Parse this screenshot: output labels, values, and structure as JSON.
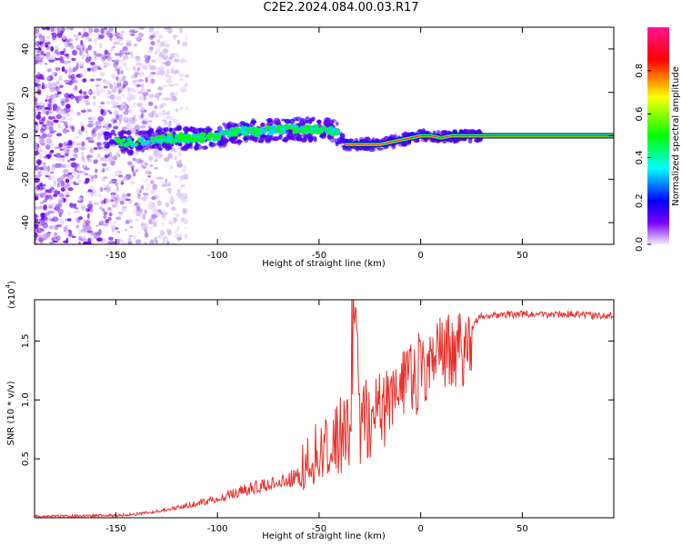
{
  "title": "C2E2.2024.084.00.03.R17",
  "chart_data": [
    {
      "type": "heatmap",
      "title": "C2E2.2024.084.00.03.R17",
      "xlabel": "Height of straight line (km)",
      "ylabel": "Frequency (Hz)",
      "xlim": [
        -190,
        95
      ],
      "ylim": [
        -50,
        50
      ],
      "x_ticks": [
        -150,
        -100,
        -50,
        0,
        50
      ],
      "y_ticks": [
        -40,
        -20,
        0,
        20,
        40
      ],
      "x_tick_labels": [
        "-150",
        "-100",
        "-50",
        "0",
        "50"
      ],
      "y_tick_labels": [
        "-40",
        "-20",
        "0",
        "20",
        "40"
      ],
      "colorbar": {
        "label": "Normalized spectral amplitude",
        "range": [
          0,
          1
        ],
        "ticks": [
          0.0,
          0.2,
          0.4,
          0.6,
          0.8
        ],
        "tick_labels": [
          "0.0",
          "0.2",
          "0.4",
          "0.6",
          "0.8"
        ],
        "colors": [
          "#f2e9fb",
          "#7a00ff",
          "#0000ff",
          "#00ffff",
          "#00ff00",
          "#ffff00",
          "#ff0000",
          "#ff1493"
        ]
      },
      "noise_region": {
        "x_start": -190,
        "x_end": -125,
        "note_level": 0.35
      },
      "ridge": [
        {
          "x": -150,
          "f": -3
        },
        {
          "x": -140,
          "f": -3
        },
        {
          "x": -130,
          "f": -2
        },
        {
          "x": -120,
          "f": -1
        },
        {
          "x": -110,
          "f": -1
        },
        {
          "x": -100,
          "f": 0
        },
        {
          "x": -90,
          "f": 2
        },
        {
          "x": -80,
          "f": 2
        },
        {
          "x": -70,
          "f": 3
        },
        {
          "x": -60,
          "f": 3
        },
        {
          "x": -50,
          "f": 3
        },
        {
          "x": -42,
          "f": 2
        },
        {
          "x": -37,
          "f": -4
        },
        {
          "x": -20,
          "f": -4
        },
        {
          "x": -15,
          "f": -3
        },
        {
          "x": -10,
          "f": -2
        },
        {
          "x": -5,
          "f": -1
        },
        {
          "x": 0,
          "f": 0
        },
        {
          "x": 5,
          "f": 0
        },
        {
          "x": 10,
          "f": -1
        },
        {
          "x": 15,
          "f": 0
        },
        {
          "x": 95,
          "f": 0
        }
      ]
    },
    {
      "type": "line",
      "xlabel": "Height of straight line (km)",
      "ylabel": "SNR (10 * v/v)",
      "y_multiplier": "(x10",
      "y_multiplier_exp": "4",
      "y_multiplier_close": ")",
      "xlim": [
        -190,
        95
      ],
      "ylim": [
        0,
        1.85
      ],
      "x_ticks": [
        -150,
        -100,
        -50,
        0,
        50
      ],
      "y_ticks": [
        0.5,
        1.0,
        1.5
      ],
      "x_tick_labels": [
        "-150",
        "-100",
        "-50",
        "0",
        "50"
      ],
      "y_tick_labels": [
        "0.5",
        "1.0",
        "1.5"
      ],
      "series": [
        {
          "color": "#e8302a",
          "x": [
            -190,
            -170,
            -150,
            -140,
            -130,
            -120,
            -110,
            -100,
            -90,
            -80,
            -70,
            -60,
            -55,
            -50,
            -45,
            -40,
            -35,
            -32,
            -30,
            -28,
            -25,
            -20,
            -15,
            -10,
            -5,
            0,
            5,
            10,
            15,
            20,
            25,
            30,
            40,
            50,
            60,
            70,
            80,
            90,
            95
          ],
          "y": [
            0.01,
            0.015,
            0.02,
            0.03,
            0.05,
            0.08,
            0.11,
            0.15,
            0.2,
            0.24,
            0.28,
            0.33,
            0.4,
            0.45,
            0.5,
            0.55,
            0.62,
            1.85,
            0.9,
            1.0,
            0.95,
            1.05,
            1.1,
            1.2,
            1.3,
            1.4,
            1.45,
            1.5,
            1.55,
            1.58,
            1.62,
            1.72,
            1.72,
            1.73,
            1.72,
            1.73,
            1.72,
            1.71,
            1.72
          ]
        }
      ]
    }
  ]
}
